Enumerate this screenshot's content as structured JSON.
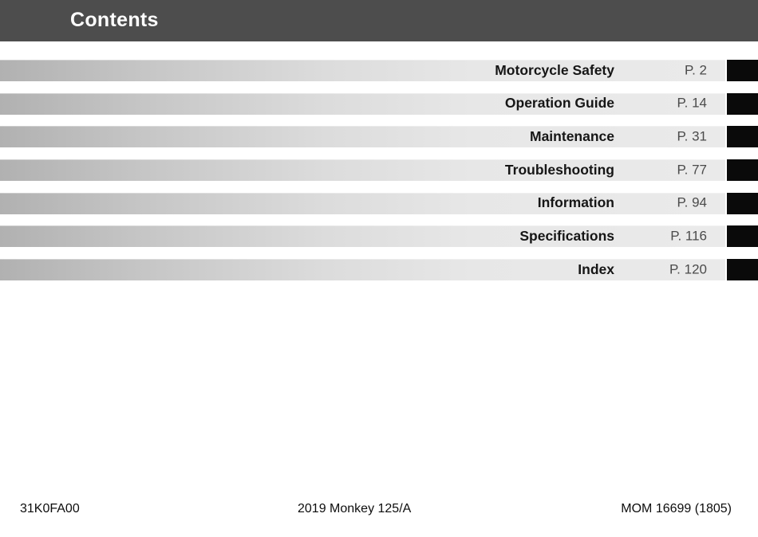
{
  "header": {
    "title": "Contents",
    "bg_color": "#4d4d4d",
    "text_color": "#ffffff"
  },
  "toc": {
    "bar_gradient_start": "#b1b1b1",
    "bar_gradient_end": "#eaeaea",
    "tab_color": "#0a0a0a",
    "label_color": "#161616",
    "page_number_color": "#4b4b4b",
    "items": [
      {
        "label": "Motorcycle Safety",
        "page": "P. 2"
      },
      {
        "label": "Operation Guide",
        "page": "P. 14"
      },
      {
        "label": "Maintenance",
        "page": "P. 31"
      },
      {
        "label": "Troubleshooting",
        "page": "P. 77"
      },
      {
        "label": "Information",
        "page": "P. 94"
      },
      {
        "label": "Specifications",
        "page": "P. 116"
      },
      {
        "label": "Index",
        "page": "P. 120"
      }
    ]
  },
  "footer": {
    "left": "31K0FA00",
    "center": "2019 Monkey 125/A",
    "right": "MOM 16699 (1805)"
  }
}
